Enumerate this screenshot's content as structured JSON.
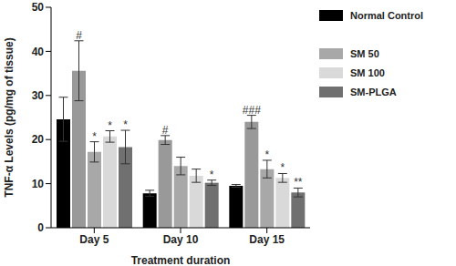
{
  "chart_data": {
    "type": "bar",
    "y_label": "TNF-α Levels (pg/mg of tissue)",
    "x_label": "Treatment duration",
    "categories": [
      "Day 5",
      "Day 10",
      "Day 15"
    ],
    "ylim": [
      0,
      50
    ],
    "yticks": [
      0,
      10,
      20,
      30,
      40,
      50
    ],
    "grid": false,
    "series": [
      {
        "name": "Normal Control",
        "color": "#000000",
        "values": [
          24.6,
          7.8,
          9.5
        ],
        "errors": [
          5,
          0.7,
          0.3
        ],
        "annotations": [
          null,
          null,
          null
        ]
      },
      {
        "color": "#999999",
        "values": [
          35.6,
          19.9,
          24
        ],
        "errors": [
          6.8,
          1,
          1.5
        ],
        "annotations": [
          "#",
          "#",
          "###"
        ]
      },
      {
        "name": "SM 50",
        "color": "#a8a8a8",
        "values": [
          17.2,
          14,
          13.3
        ],
        "errors": [
          2.3,
          2,
          2
        ],
        "annotations": [
          "*",
          null,
          "*"
        ]
      },
      {
        "name": "SM 100",
        "color": "#d9d9d9",
        "values": [
          20.7,
          11.8,
          11.3
        ],
        "errors": [
          1.3,
          1.5,
          1
        ],
        "annotations": [
          "*",
          null,
          "*"
        ]
      },
      {
        "name": "SM-PLGA",
        "color": "#707070",
        "values": [
          18.3,
          10.2,
          8
        ],
        "errors": [
          3.8,
          0.6,
          1
        ],
        "annotations": [
          "*",
          "*",
          "**"
        ]
      }
    ]
  }
}
